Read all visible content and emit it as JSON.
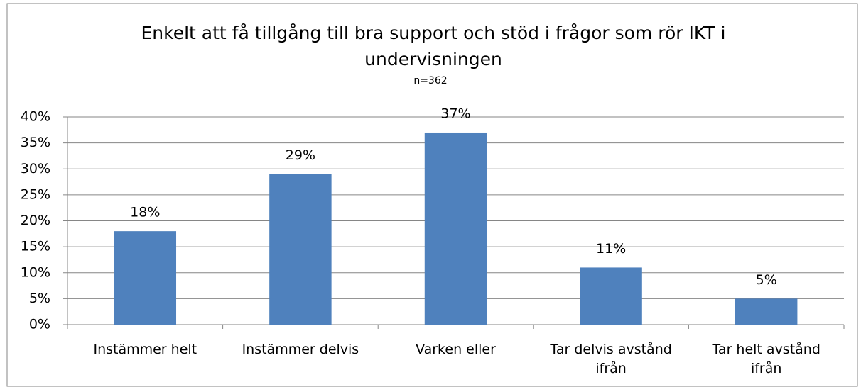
{
  "chart_data": {
    "type": "bar",
    "title": "Enkelt att få tillgång till bra support och stöd i frågor som rör IKT i undervisningen",
    "subtitle": "n=362",
    "categories": [
      "Instämmer helt",
      "Instämmer delvis",
      "Varken eller",
      "Tar delvis avstånd ifrån",
      "Tar helt avstånd ifrån"
    ],
    "values": [
      18,
      29,
      37,
      11,
      5
    ],
    "value_labels": [
      "18%",
      "29%",
      "37%",
      "11%",
      "5%"
    ],
    "color": "#4f81bd",
    "ylim": [
      0,
      40
    ],
    "yticks": [
      {
        "value": 0,
        "label": "0%"
      },
      {
        "value": 5,
        "label": "5%"
      },
      {
        "value": 10,
        "label": "10%"
      },
      {
        "value": 15,
        "label": "15%"
      },
      {
        "value": 20,
        "label": "20%"
      },
      {
        "value": 25,
        "label": "25%"
      },
      {
        "value": 30,
        "label": "30%"
      },
      {
        "value": 35,
        "label": "35%"
      },
      {
        "value": 40,
        "label": "40%"
      }
    ],
    "grid": true
  }
}
